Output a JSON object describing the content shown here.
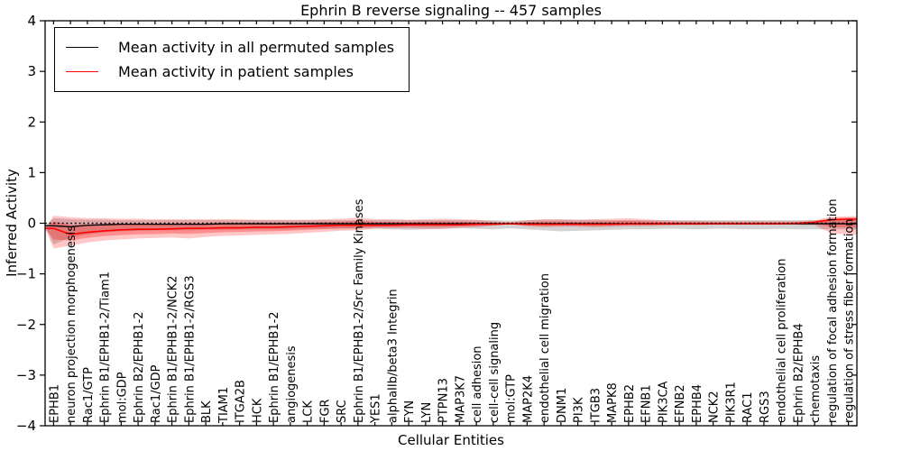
{
  "figure": {
    "title": "Ephrin B reverse signaling -- 457 samples",
    "xlabel": "Cellular Entities",
    "ylabel": "Inferred Activity",
    "legend": {
      "items": [
        {
          "label": "Mean activity in all permuted samples",
          "color": "#000000"
        },
        {
          "label": "Mean activity in patient samples",
          "color": "#ff0000"
        }
      ]
    }
  },
  "chart_data": {
    "type": "line",
    "title": "Ephrin B reverse signaling -- 457 samples",
    "xlabel": "Cellular Entities",
    "ylabel": "Inferred Activity",
    "ylim": [
      -4,
      4
    ],
    "yticks": [
      -4,
      -3,
      -2,
      -1,
      0,
      1,
      2,
      3,
      4
    ],
    "grid": false,
    "legend_position": "upper left",
    "background": "#ffffff",
    "frame_color": "#000000",
    "categories": [
      "EPHB1",
      "neuron projection morphogenesis",
      "Rac1/GTP",
      "Ephrin B1/EPHB1-2/Tiam1",
      "mol:GDP",
      "Ephrin B2/EPHB1-2",
      "Rac1/GDP",
      "Ephrin B1/EPHB1-2/NCK2",
      "Ephrin B1/EPHB1-2/RGS3",
      "BLK",
      "TIAM1",
      "ITGA2B",
      "HCK",
      "Ephrin B1/EPHB1-2",
      "angiogenesis",
      "LCK",
      "FGR",
      "SRC",
      "Ephrin B1/EPHB1-2/Src Family Kinases",
      "YES1",
      "alphaIIb/beta3 Integrin",
      "FYN",
      "LYN",
      "PTPN13",
      "MAP3K7",
      "cell adhesion",
      "cell-cell signaling",
      "mol:GTP",
      "MAP2K4",
      "endothelial cell migration",
      "DNM1",
      "PI3K",
      "ITGB3",
      "MAPK8",
      "EPHB2",
      "EFNB1",
      "PIK3CA",
      "EFNB2",
      "EPHB4",
      "NCK2",
      "PIK3R1",
      "RAC1",
      "RGS3",
      "endothelial cell proliferation",
      "Ephrin B2/EPHB4",
      "chemotaxis",
      "regulation of focal adhesion formation",
      "regulation of stress fiber formation"
    ],
    "series": [
      {
        "name": "Mean activity in all permuted samples",
        "color": "#000000",
        "style": "solid",
        "values": [
          -0.05,
          -0.07,
          -0.04,
          -0.03,
          -0.02,
          -0.02,
          -0.02,
          -0.02,
          -0.02,
          -0.02,
          -0.01,
          -0.01,
          -0.01,
          -0.01,
          -0.01,
          -0.01,
          -0.01,
          -0.01,
          -0.01,
          -0.01,
          -0.01,
          -0.01,
          -0.01,
          -0.01,
          -0.01,
          -0.01,
          -0.01,
          -0.01,
          -0.01,
          -0.01,
          -0.01,
          -0.01,
          -0.01,
          -0.01,
          -0.01,
          -0.01,
          -0.01,
          -0.01,
          -0.01,
          -0.01,
          -0.01,
          -0.01,
          -0.01,
          -0.01,
          -0.01,
          -0.01,
          -0.01,
          -0.01
        ]
      },
      {
        "name": "Mean activity in patient samples",
        "color": "#ff0000",
        "style": "solid",
        "values": [
          -0.1,
          -0.22,
          -0.18,
          -0.15,
          -0.13,
          -0.12,
          -0.12,
          -0.11,
          -0.1,
          -0.1,
          -0.09,
          -0.09,
          -0.08,
          -0.08,
          -0.07,
          -0.06,
          -0.05,
          -0.04,
          -0.04,
          -0.04,
          -0.04,
          -0.03,
          -0.03,
          -0.03,
          -0.03,
          -0.02,
          -0.02,
          -0.01,
          -0.02,
          -0.02,
          -0.02,
          -0.02,
          -0.02,
          -0.02,
          -0.01,
          -0.01,
          -0.01,
          -0.01,
          -0.01,
          -0.01,
          -0.01,
          -0.01,
          -0.01,
          -0.01,
          0.0,
          0.02,
          0.07,
          0.08
        ]
      }
    ],
    "bands": [
      {
        "name": "permuted samples spread",
        "color": "#9e9e9e",
        "opacity": 0.45,
        "anchor_series": 0,
        "upper": [
          0.1,
          0.08,
          0.07,
          0.07,
          0.06,
          0.06,
          0.06,
          0.06,
          0.06,
          0.06,
          0.06,
          0.06,
          0.06,
          0.06,
          0.06,
          0.06,
          0.06,
          0.06,
          0.06,
          0.06,
          0.06,
          0.06,
          0.06,
          0.06,
          0.06,
          0.06,
          0.06,
          0.05,
          0.06,
          0.07,
          0.07,
          0.07,
          0.07,
          0.06,
          0.06,
          0.06,
          0.06,
          0.06,
          0.06,
          0.06,
          0.06,
          0.06,
          0.06,
          0.06,
          0.06,
          0.06,
          0.07,
          0.07
        ],
        "lower": [
          -0.42,
          -0.28,
          -0.22,
          -0.18,
          -0.16,
          -0.15,
          -0.14,
          -0.14,
          -0.14,
          -0.13,
          -0.13,
          -0.12,
          -0.12,
          -0.12,
          -0.12,
          -0.11,
          -0.11,
          -0.11,
          -0.11,
          -0.1,
          -0.12,
          -0.13,
          -0.12,
          -0.11,
          -0.1,
          -0.11,
          -0.12,
          -0.1,
          -0.12,
          -0.14,
          -0.16,
          -0.15,
          -0.14,
          -0.13,
          -0.12,
          -0.12,
          -0.11,
          -0.11,
          -0.12,
          -0.11,
          -0.11,
          -0.12,
          -0.12,
          -0.11,
          -0.12,
          -0.12,
          -0.12,
          -0.12
        ]
      },
      {
        "name": "patient samples spread",
        "color": "#ff0000",
        "opacity": 0.22,
        "anchor_series": 1,
        "upper": [
          0.15,
          0.12,
          0.1,
          0.1,
          0.09,
          0.09,
          0.08,
          0.08,
          0.08,
          0.08,
          0.08,
          0.08,
          0.07,
          0.07,
          0.07,
          0.07,
          0.08,
          0.09,
          0.11,
          0.08,
          0.08,
          0.07,
          0.08,
          0.09,
          0.08,
          0.07,
          0.04,
          0.02,
          0.06,
          0.08,
          0.08,
          0.07,
          0.08,
          0.09,
          0.1,
          0.08,
          0.06,
          0.05,
          0.05,
          0.04,
          0.04,
          0.04,
          0.04,
          0.04,
          0.04,
          0.06,
          0.13,
          0.14
        ],
        "lower": [
          -0.5,
          -0.44,
          -0.38,
          -0.34,
          -0.32,
          -0.3,
          -0.29,
          -0.28,
          -0.3,
          -0.27,
          -0.25,
          -0.24,
          -0.23,
          -0.22,
          -0.21,
          -0.19,
          -0.17,
          -0.15,
          -0.14,
          -0.11,
          -0.1,
          -0.1,
          -0.11,
          -0.11,
          -0.09,
          -0.08,
          -0.05,
          -0.02,
          -0.06,
          -0.08,
          -0.07,
          -0.07,
          -0.08,
          -0.07,
          -0.06,
          -0.06,
          -0.05,
          -0.04,
          -0.04,
          -0.03,
          -0.03,
          -0.03,
          -0.03,
          -0.03,
          -0.03,
          -0.04,
          -0.2,
          -0.22
        ]
      }
    ],
    "reference_line": {
      "y": 0,
      "color": "#000000",
      "style": "dotted"
    }
  }
}
